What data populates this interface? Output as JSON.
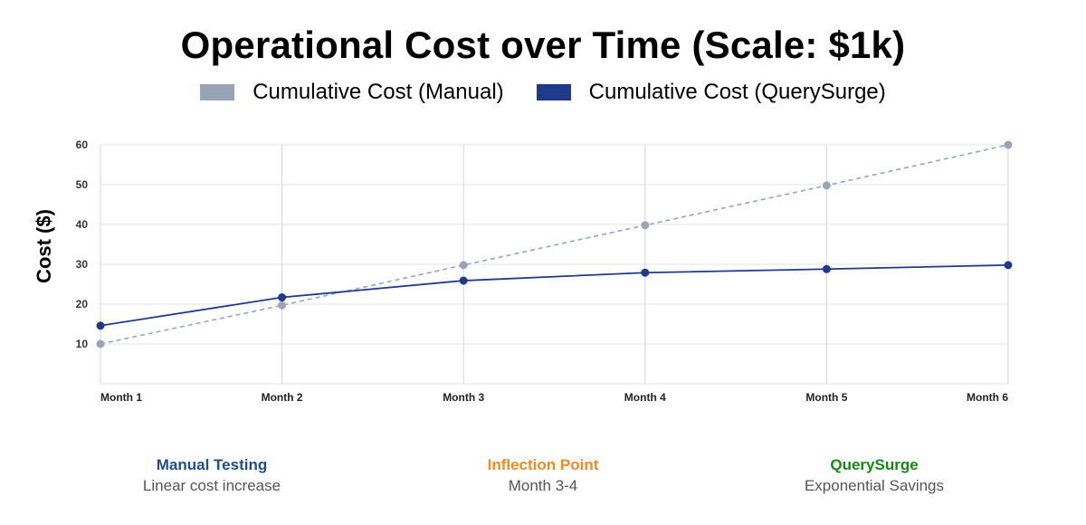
{
  "chart_data": {
    "type": "line",
    "title": "Operational Cost over Time (Scale: $1k)",
    "xlabel": "",
    "ylabel": "Cost ($)",
    "categories": [
      "Month 1",
      "Month 2",
      "Month 3",
      "Month 4",
      "Month 5",
      "Month 6"
    ],
    "y_ticks": [
      10,
      20,
      30,
      40,
      50,
      60
    ],
    "ylim": [
      0,
      60
    ],
    "grid": true,
    "legend_position": "top-center",
    "series": [
      {
        "name": "Cumulative Cost (Manual)",
        "values": [
          10,
          19.7,
          29.8,
          39.8,
          49.8,
          60
        ],
        "color": "#98a4b8",
        "style": "dashed"
      },
      {
        "name": "Cumulative Cost (QuerySurge)",
        "values": [
          14.6,
          21.7,
          25.9,
          27.9,
          28.8,
          29.8
        ],
        "color": "#1f3a8a",
        "style": "solid"
      }
    ]
  },
  "footer": [
    {
      "heading": "Manual Testing",
      "subtext": "Linear cost increase",
      "color": "#1f4e8c"
    },
    {
      "heading": "Inflection Point",
      "subtext": "Month 3-4",
      "color": "#f08a24"
    },
    {
      "heading": "QuerySurge",
      "subtext": "Exponential Savings",
      "color": "#138a13"
    }
  ]
}
